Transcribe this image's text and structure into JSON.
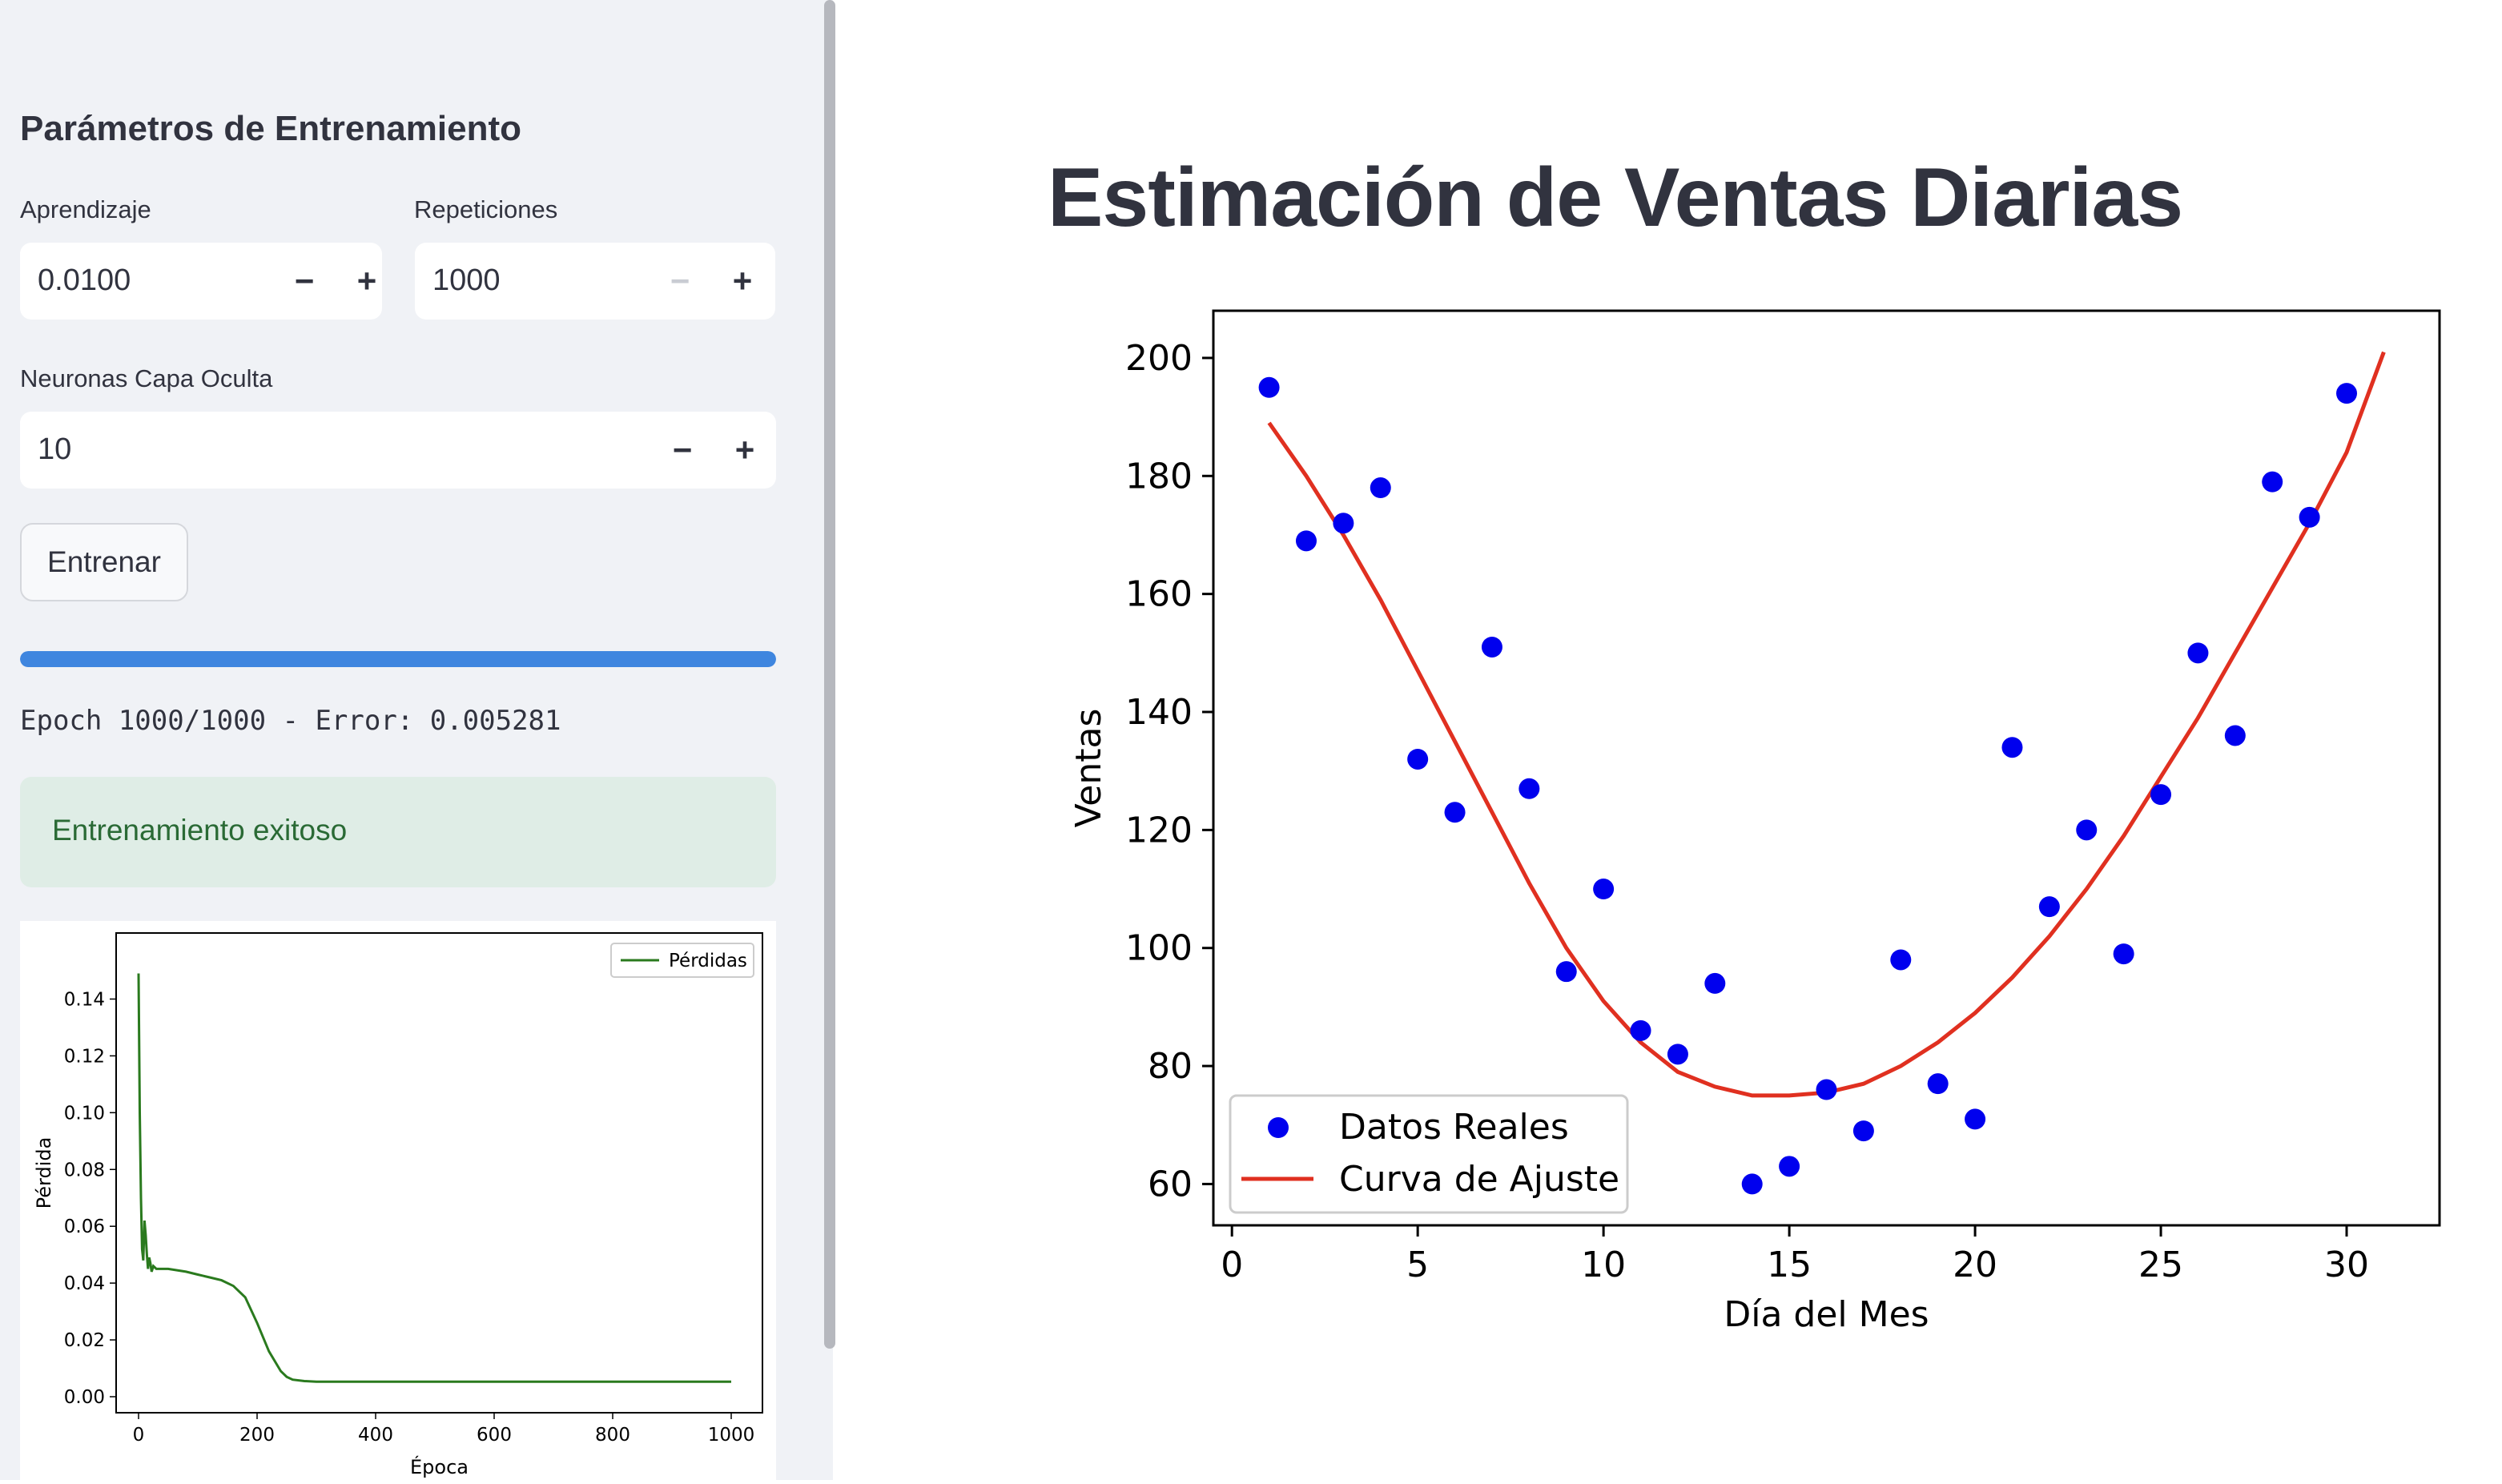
{
  "sidebar": {
    "section_title": "Parámetros de Entrenamiento",
    "learning_rate": {
      "label": "Aprendizaje",
      "value": "0.0100",
      "minus": "−",
      "plus": "+"
    },
    "repetitions": {
      "label": "Repeticiones",
      "value": "1000",
      "minus": "−",
      "plus": "+"
    },
    "hidden_neurons": {
      "label": "Neuronas Capa Oculta",
      "value": "10",
      "minus": "−",
      "plus": "+"
    },
    "train_button": "Entrenar",
    "progress": 1.0,
    "status_text": "Epoch 1000/1000 - Error: 0.005281",
    "success_message": "Entrenamiento exitoso"
  },
  "main": {
    "title": "Estimación de Ventas Diarias"
  },
  "colors": {
    "sidebar_bg": "#f0f2f6",
    "progress": "#3f86df",
    "success_bg": "#dfede6",
    "success_text": "#2a6a35",
    "scatter": "#0000ee",
    "fit": "#e03020",
    "loss_line": "#2a7a1e"
  },
  "chart_data": [
    {
      "type": "line",
      "xlabel": "Época",
      "ylabel": "Pérdida",
      "xlim": [
        0,
        1000
      ],
      "ylim": [
        0,
        0.15
      ],
      "xticks": [
        0,
        200,
        400,
        600,
        800,
        1000
      ],
      "yticks": [
        "0.00",
        "0.02",
        "0.04",
        "0.06",
        "0.08",
        "0.10",
        "0.12",
        "0.14"
      ],
      "legend": "top-right",
      "series": [
        {
          "name": "Pérdidas",
          "x": [
            0,
            2,
            4,
            6,
            8,
            10,
            12,
            14,
            16,
            18,
            20,
            22,
            25,
            30,
            40,
            50,
            80,
            100,
            120,
            140,
            160,
            180,
            200,
            220,
            240,
            250,
            260,
            280,
            300,
            400,
            600,
            800,
            1000
          ],
          "y": [
            0.149,
            0.1,
            0.07,
            0.052,
            0.048,
            0.062,
            0.057,
            0.05,
            0.045,
            0.049,
            0.047,
            0.044,
            0.046,
            0.045,
            0.045,
            0.045,
            0.044,
            0.043,
            0.042,
            0.041,
            0.039,
            0.035,
            0.026,
            0.016,
            0.009,
            0.007,
            0.006,
            0.0055,
            0.0053,
            0.0053,
            0.0053,
            0.0053,
            0.0053
          ]
        }
      ]
    },
    {
      "type": "scatter",
      "xlabel": "Día del Mes",
      "ylabel": "Ventas",
      "xlim": [
        -0.5,
        32.5
      ],
      "ylim": [
        53,
        208
      ],
      "xticks": [
        0,
        5,
        10,
        15,
        20,
        25,
        30
      ],
      "yticks": [
        60,
        80,
        100,
        120,
        140,
        160,
        180,
        200
      ],
      "legend": "lower-left",
      "series": [
        {
          "name": "Datos Reales",
          "x": [
            1,
            2,
            3,
            4,
            5,
            6,
            7,
            8,
            9,
            10,
            11,
            12,
            13,
            14,
            15,
            16,
            17,
            18,
            19,
            20,
            21,
            22,
            23,
            24,
            25,
            26,
            27,
            28,
            29,
            30
          ],
          "y": [
            195,
            169,
            172,
            178,
            132,
            123,
            151,
            127,
            96,
            110,
            86,
            82,
            94,
            60,
            63,
            76,
            69,
            98,
            77,
            71,
            134,
            107,
            120,
            99,
            126,
            150,
            136,
            179,
            173,
            194
          ]
        },
        {
          "name": "Curva de Ajuste",
          "x": [
            1,
            2,
            3,
            4,
            5,
            6,
            7,
            8,
            9,
            10,
            11,
            12,
            13,
            14,
            15,
            16,
            17,
            18,
            19,
            20,
            21,
            22,
            23,
            24,
            25,
            26,
            27,
            28,
            29,
            30,
            31
          ],
          "y": [
            189,
            180,
            170,
            159,
            147,
            135,
            123,
            111,
            100,
            91,
            84,
            79,
            76.5,
            75,
            75,
            75.5,
            77,
            80,
            84,
            89,
            95,
            102,
            110,
            119,
            129,
            139,
            150,
            161,
            172,
            184,
            201
          ]
        }
      ]
    }
  ]
}
